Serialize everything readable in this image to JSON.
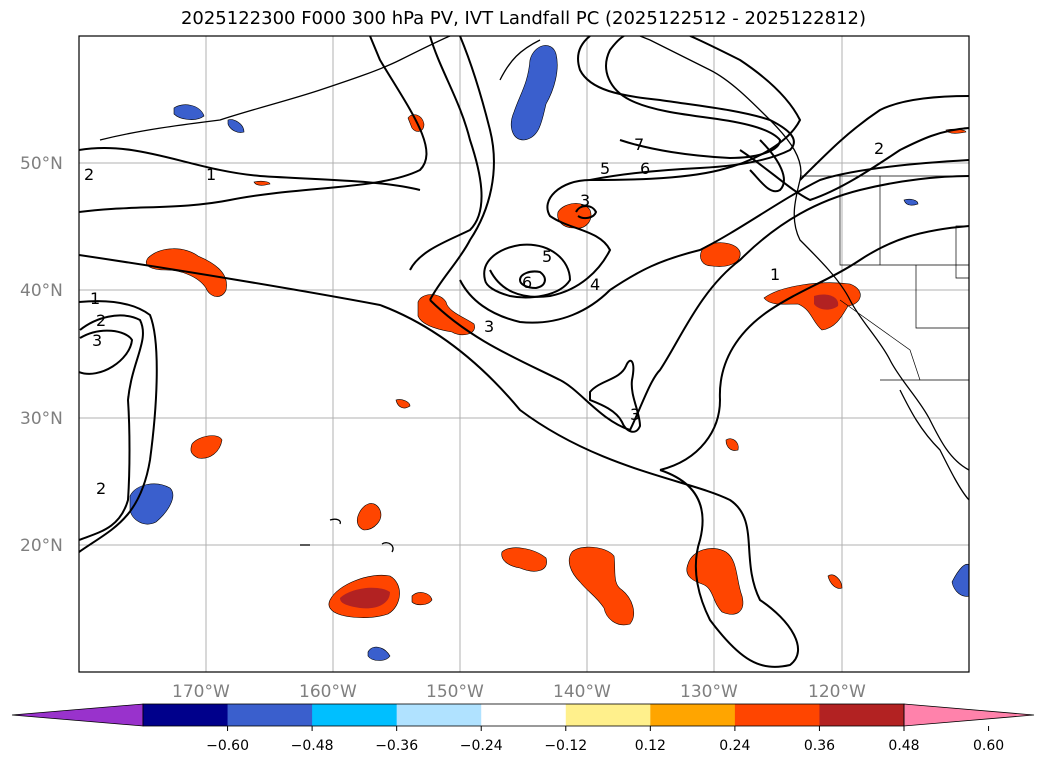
{
  "title": "2025122300 F000 300 hPa PV, IVT Landfall PC (2025122512 - 2025122812)",
  "map": {
    "lon_range": [
      -180,
      -110
    ],
    "lat_range": [
      10,
      60
    ],
    "gridline_color": "#b0b0b0",
    "lat_labels": [
      "20°N",
      "30°N",
      "40°N",
      "50°N"
    ],
    "lon_labels": [
      "170°W",
      "160°W",
      "150°W",
      "140°W",
      "130°W",
      "120°W"
    ],
    "contour_labels": [
      "1",
      "2",
      "3",
      "3",
      "4",
      "5",
      "5",
      "6",
      "6",
      "7",
      "2",
      "1",
      "1",
      "2",
      "3",
      "3",
      "2"
    ]
  },
  "colorbar": {
    "ticks": [
      "−0.60",
      "−0.48",
      "−0.36",
      "−0.24",
      "−0.12",
      "0.12",
      "0.24",
      "0.36",
      "0.48",
      "0.60"
    ],
    "colors": [
      "#9932cc",
      "#00008b",
      "#3a5fcd",
      "#00bfff",
      "#b0e2ff",
      "#ffffff",
      "#fff08c",
      "#ffa500",
      "#ff4500",
      "#b22222",
      "#ff82ab"
    ]
  }
}
